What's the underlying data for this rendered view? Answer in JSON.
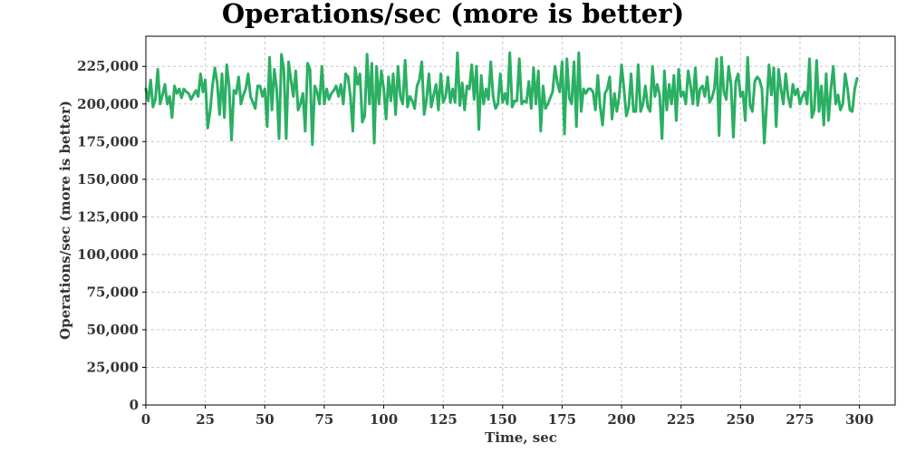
{
  "chart_data": {
    "type": "line",
    "title": "Operations/sec (more is better)",
    "xlabel": "Time, sec",
    "ylabel": "Operations/sec (more is better)",
    "xlim": [
      0,
      315
    ],
    "ylim": [
      0,
      245000
    ],
    "x_ticks": [
      0,
      25,
      50,
      75,
      100,
      125,
      150,
      175,
      200,
      225,
      250,
      275,
      300
    ],
    "x_tick_labels": [
      "0",
      "25",
      "50",
      "75",
      "100",
      "125",
      "150",
      "175",
      "200",
      "225",
      "250",
      "275",
      "300"
    ],
    "y_ticks": [
      0,
      25000,
      50000,
      75000,
      100000,
      125000,
      150000,
      175000,
      200000,
      225000
    ],
    "y_tick_labels": [
      "0",
      "25,000",
      "50,000",
      "75,000",
      "100,000",
      "125,000",
      "150,000",
      "175,000",
      "200,000",
      "225,000"
    ],
    "grid": true,
    "legend": "none",
    "series_color": "#2aaf63",
    "series": [
      {
        "values": [
          [
            0,
            210000
          ],
          [
            1,
            202000
          ],
          [
            2,
            216000
          ],
          [
            3,
            198000
          ],
          [
            4,
            203000
          ],
          [
            5,
            223000
          ],
          [
            6,
            200000
          ],
          [
            7,
            206000
          ],
          [
            8,
            213000
          ],
          [
            9,
            200000
          ],
          [
            10,
            205000
          ],
          [
            11,
            191000
          ],
          [
            12,
            212000
          ],
          [
            13,
            207000
          ],
          [
            14,
            210000
          ],
          [
            15,
            204000
          ],
          [
            16,
            210000
          ],
          [
            17,
            208000
          ],
          [
            18,
            207000
          ],
          [
            19,
            203000
          ],
          [
            20,
            206000
          ],
          [
            21,
            209000
          ],
          [
            22,
            205000
          ],
          [
            23,
            220000
          ],
          [
            24,
            208000
          ],
          [
            25,
            216000
          ],
          [
            26,
            184000
          ],
          [
            27,
            195000
          ],
          [
            28,
            212000
          ],
          [
            29,
            224000
          ],
          [
            30,
            214000
          ],
          [
            31,
            193000
          ],
          [
            32,
            220000
          ],
          [
            33,
            191000
          ],
          [
            34,
            226000
          ],
          [
            35,
            212000
          ],
          [
            36,
            176000
          ],
          [
            37,
            209000
          ],
          [
            38,
            207000
          ],
          [
            39,
            218000
          ],
          [
            40,
            200000
          ],
          [
            41,
            206000
          ],
          [
            42,
            210000
          ],
          [
            43,
            220000
          ],
          [
            44,
            205000
          ],
          [
            45,
            201000
          ],
          [
            46,
            197000
          ],
          [
            47,
            212000
          ],
          [
            48,
            212000
          ],
          [
            49,
            205000
          ],
          [
            50,
            210000
          ],
          [
            51,
            185000
          ],
          [
            52,
            231000
          ],
          [
            53,
            196000
          ],
          [
            54,
            223000
          ],
          [
            55,
            210000
          ],
          [
            56,
            177000
          ],
          [
            57,
            233000
          ],
          [
            58,
            223000
          ],
          [
            59,
            177000
          ],
          [
            60,
            228000
          ],
          [
            61,
            216000
          ],
          [
            62,
            205000
          ],
          [
            63,
            222000
          ],
          [
            64,
            196000
          ],
          [
            65,
            200000
          ],
          [
            66,
            207000
          ],
          [
            67,
            182000
          ],
          [
            68,
            227000
          ],
          [
            69,
            223000
          ],
          [
            70,
            173000
          ],
          [
            71,
            212000
          ],
          [
            72,
            208000
          ],
          [
            73,
            200000
          ],
          [
            74,
            225000
          ],
          [
            75,
            200000
          ],
          [
            76,
            210000
          ],
          [
            77,
            203000
          ],
          [
            78,
            207000
          ],
          [
            79,
            209000
          ],
          [
            80,
            212000
          ],
          [
            81,
            205000
          ],
          [
            82,
            213000
          ],
          [
            83,
            200000
          ],
          [
            84,
            220000
          ],
          [
            85,
            218000
          ],
          [
            86,
            205000
          ],
          [
            87,
            182000
          ],
          [
            88,
            224000
          ],
          [
            89,
            213000
          ],
          [
            90,
            220000
          ],
          [
            91,
            188000
          ],
          [
            92,
            192000
          ],
          [
            93,
            233000
          ],
          [
            94,
            200000
          ],
          [
            95,
            227000
          ],
          [
            96,
            174000
          ],
          [
            97,
            225000
          ],
          [
            98,
            200000
          ],
          [
            99,
            222000
          ],
          [
            100,
            210000
          ],
          [
            101,
            190000
          ],
          [
            102,
            218000
          ],
          [
            103,
            202000
          ],
          [
            104,
            220000
          ],
          [
            105,
            193000
          ],
          [
            106,
            225000
          ],
          [
            107,
            205000
          ],
          [
            108,
            200000
          ],
          [
            109,
            229000
          ],
          [
            110,
            198000
          ],
          [
            111,
            205000
          ],
          [
            112,
            202000
          ],
          [
            113,
            197000
          ],
          [
            114,
            212000
          ],
          [
            115,
            216000
          ],
          [
            116,
            228000
          ],
          [
            117,
            193000
          ],
          [
            118,
            203000
          ],
          [
            119,
            220000
          ],
          [
            120,
            198000
          ],
          [
            121,
            206000
          ],
          [
            122,
            213000
          ],
          [
            123,
            196000
          ],
          [
            124,
            220000
          ],
          [
            125,
            201000
          ],
          [
            126,
            205000
          ],
          [
            127,
            218000
          ],
          [
            128,
            201000
          ],
          [
            129,
            210000
          ],
          [
            130,
            201000
          ],
          [
            131,
            234000
          ],
          [
            132,
            199000
          ],
          [
            133,
            214000
          ],
          [
            134,
            196000
          ],
          [
            135,
            212000
          ],
          [
            136,
            210000
          ],
          [
            137,
            226000
          ],
          [
            138,
            203000
          ],
          [
            139,
            225000
          ],
          [
            140,
            183000
          ],
          [
            141,
            219000
          ],
          [
            142,
            200000
          ],
          [
            143,
            210000
          ],
          [
            144,
            203000
          ],
          [
            145,
            228000
          ],
          [
            146,
            205000
          ],
          [
            147,
            197000
          ],
          [
            148,
            200000
          ],
          [
            149,
            220000
          ],
          [
            150,
            201000
          ],
          [
            151,
            207000
          ],
          [
            152,
            200000
          ],
          [
            153,
            234000
          ],
          [
            154,
            198000
          ],
          [
            155,
            202000
          ],
          [
            156,
            202000
          ],
          [
            157,
            230000
          ],
          [
            158,
            200000
          ],
          [
            159,
            202000
          ],
          [
            160,
            201000
          ],
          [
            161,
            215000
          ],
          [
            162,
            197000
          ],
          [
            163,
            224000
          ],
          [
            164,
            200000
          ],
          [
            165,
            222000
          ],
          [
            166,
            182000
          ],
          [
            167,
            212000
          ],
          [
            168,
            197000
          ],
          [
            169,
            200000
          ],
          [
            170,
            204000
          ],
          [
            171,
            208000
          ],
          [
            172,
            225000
          ],
          [
            173,
            214000
          ],
          [
            174,
            208000
          ],
          [
            175,
            228000
          ],
          [
            176,
            180000
          ],
          [
            177,
            230000
          ],
          [
            178,
            204000
          ],
          [
            179,
            200000
          ],
          [
            180,
            228000
          ],
          [
            181,
            185000
          ],
          [
            182,
            234000
          ],
          [
            183,
            195000
          ],
          [
            184,
            210000
          ],
          [
            185,
            207000
          ],
          [
            186,
            210000
          ],
          [
            187,
            210000
          ],
          [
            188,
            208000
          ],
          [
            189,
            196000
          ],
          [
            190,
            219000
          ],
          [
            191,
            198000
          ],
          [
            192,
            186000
          ],
          [
            193,
            207000
          ],
          [
            194,
            210000
          ],
          [
            195,
            218000
          ],
          [
            196,
            190000
          ],
          [
            197,
            207000
          ],
          [
            198,
            195000
          ],
          [
            199,
            205000
          ],
          [
            200,
            226000
          ],
          [
            201,
            210000
          ],
          [
            202,
            192000
          ],
          [
            203,
            198000
          ],
          [
            204,
            220000
          ],
          [
            205,
            195000
          ],
          [
            206,
            195000
          ],
          [
            207,
            226000
          ],
          [
            208,
            195000
          ],
          [
            209,
            200000
          ],
          [
            210,
            212000
          ],
          [
            211,
            198000
          ],
          [
            212,
            195000
          ],
          [
            213,
            225000
          ],
          [
            214,
            205000
          ],
          [
            215,
            213000
          ],
          [
            216,
            206000
          ],
          [
            217,
            177000
          ],
          [
            218,
            222000
          ],
          [
            219,
            196000
          ],
          [
            220,
            213000
          ],
          [
            221,
            200000
          ],
          [
            222,
            219000
          ],
          [
            223,
            189000
          ],
          [
            224,
            223000
          ],
          [
            225,
            205000
          ],
          [
            226,
            208000
          ],
          [
            227,
            200000
          ],
          [
            228,
            222000
          ],
          [
            229,
            212000
          ],
          [
            230,
            200000
          ],
          [
            231,
            224000
          ],
          [
            232,
            199000
          ],
          [
            233,
            210000
          ],
          [
            234,
            212000
          ],
          [
            235,
            205000
          ],
          [
            236,
            218000
          ],
          [
            237,
            201000
          ],
          [
            238,
            204000
          ],
          [
            239,
            210000
          ],
          [
            240,
            230000
          ],
          [
            241,
            179000
          ],
          [
            242,
            231000
          ],
          [
            243,
            208000
          ],
          [
            244,
            203000
          ],
          [
            245,
            225000
          ],
          [
            246,
            213000
          ],
          [
            247,
            178000
          ],
          [
            248,
            215000
          ],
          [
            249,
            220000
          ],
          [
            250,
            205000
          ],
          [
            251,
            208000
          ],
          [
            252,
            189000
          ],
          [
            253,
            231000
          ],
          [
            254,
            199000
          ],
          [
            255,
            195000
          ],
          [
            256,
            215000
          ],
          [
            257,
            218000
          ],
          [
            258,
            216000
          ],
          [
            259,
            210000
          ],
          [
            260,
            174000
          ],
          [
            261,
            200000
          ],
          [
            262,
            226000
          ],
          [
            263,
            206000
          ],
          [
            264,
            224000
          ],
          [
            265,
            185000
          ],
          [
            266,
            223000
          ],
          [
            267,
            210000
          ],
          [
            268,
            200000
          ],
          [
            269,
            220000
          ],
          [
            270,
            205000
          ],
          [
            271,
            198000
          ],
          [
            272,
            213000
          ],
          [
            273,
            206000
          ],
          [
            274,
            210000
          ],
          [
            275,
            200000
          ],
          [
            276,
            205000
          ],
          [
            277,
            208000
          ],
          [
            278,
            200000
          ],
          [
            279,
            230000
          ],
          [
            280,
            191000
          ],
          [
            281,
            196000
          ],
          [
            282,
            229000
          ],
          [
            283,
            195000
          ],
          [
            284,
            212000
          ],
          [
            285,
            186000
          ],
          [
            286,
            220000
          ],
          [
            287,
            189000
          ],
          [
            288,
            210000
          ],
          [
            289,
            225000
          ],
          [
            290,
            200000
          ],
          [
            291,
            206000
          ],
          [
            292,
            196000
          ],
          [
            293,
            200000
          ],
          [
            294,
            220000
          ],
          [
            295,
            210000
          ],
          [
            296,
            196000
          ],
          [
            297,
            195000
          ],
          [
            298,
            210000
          ],
          [
            299,
            217000
          ]
        ]
      }
    ]
  }
}
